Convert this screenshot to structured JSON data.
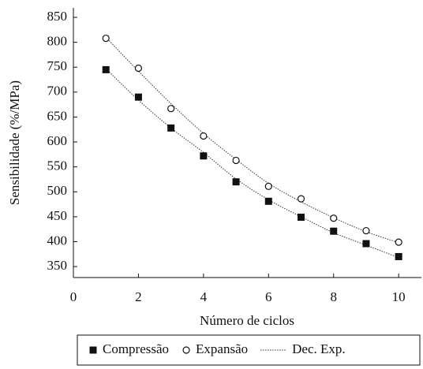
{
  "chart_data": {
    "type": "scatter",
    "x_label": "Número de ciclos",
    "y_label": "Sensibilidade (%/MPa)",
    "x": [
      1,
      2,
      3,
      4,
      5,
      6,
      7,
      8,
      9,
      10
    ],
    "series": [
      {
        "name": "Compressão",
        "color": "#111111",
        "marker": "square",
        "values": [
          745,
          690,
          628,
          572,
          520,
          481,
          449,
          421,
          396,
          370
        ]
      },
      {
        "name": "Expansão",
        "color": "#111111",
        "marker": "circle",
        "values": [
          808,
          748,
          667,
          612,
          563,
          511,
          486,
          447,
          422,
          399
        ]
      }
    ],
    "fit": {
      "name": "Dec. Exp.",
      "color": "#333333",
      "curves": [
        [
          747,
          684,
          628,
          579,
          526,
          484,
          450,
          418,
          393,
          368
        ],
        [
          810,
          742,
          677,
          617,
          565,
          517,
          480,
          448,
          420,
          398
        ]
      ]
    },
    "xlim": [
      0,
      10.7
    ],
    "xticks": [
      0,
      2,
      4,
      6,
      8,
      10
    ],
    "ylim": [
      328,
      869
    ],
    "yticks": [
      350,
      400,
      450,
      500,
      550,
      600,
      650,
      700,
      750,
      800,
      850
    ]
  }
}
